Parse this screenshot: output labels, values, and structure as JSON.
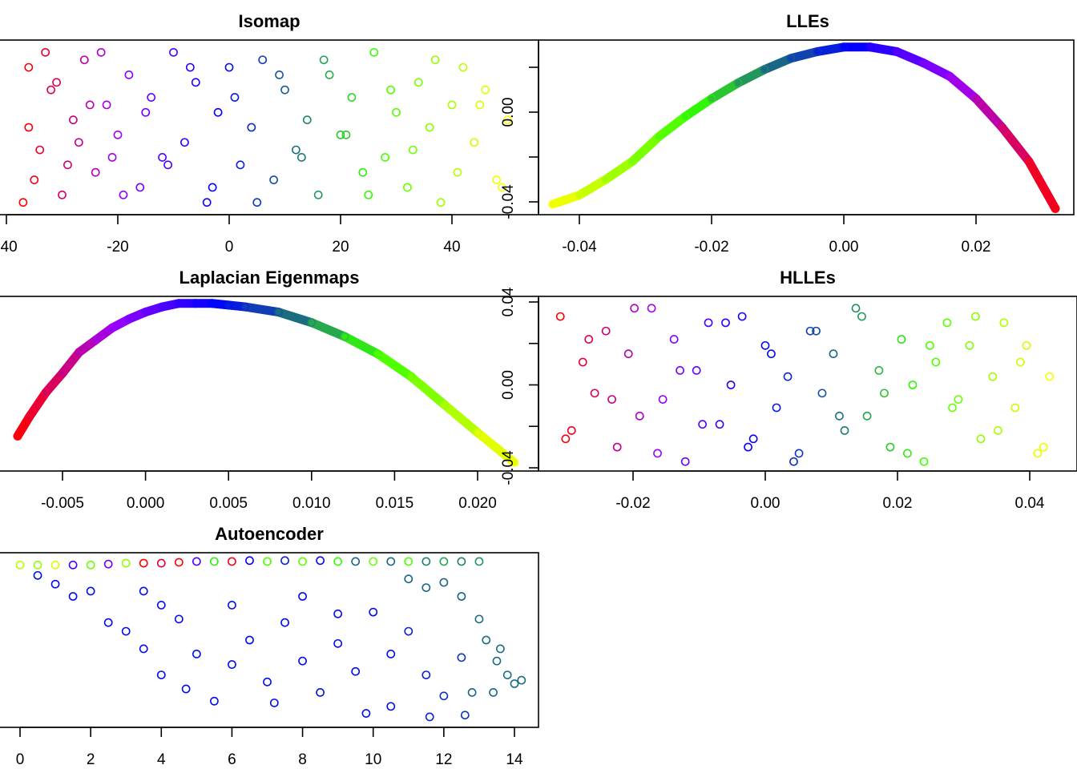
{
  "palette": {
    "stops": [
      0,
      0.2,
      0.4,
      0.55,
      0.72,
      1
    ],
    "colors": [
      "#ff0000",
      "#9900ff",
      "#0000ff",
      "#1a6488",
      "#33ff00",
      "#ffff00"
    ]
  },
  "chart_data": [
    {
      "id": "isomap",
      "type": "scatter",
      "title": "Isomap",
      "marker": "open-circle",
      "color_by": "x",
      "color_range": [
        -37,
        50
      ],
      "x_ticks": [
        -40,
        -20,
        0,
        20,
        40
      ],
      "x_tick_labels": [
        "-40",
        "-20",
        "0",
        "20",
        "40"
      ],
      "points": [
        [
          -36,
          8
        ],
        [
          -34,
          -3
        ],
        [
          -32,
          5
        ],
        [
          -30,
          -9
        ],
        [
          -28,
          1
        ],
        [
          -26,
          9
        ],
        [
          -24,
          -6
        ],
        [
          -22,
          3
        ],
        [
          -20,
          -1
        ],
        [
          -18,
          7
        ],
        [
          -16,
          -8
        ],
        [
          -14,
          4
        ],
        [
          -12,
          -4
        ],
        [
          -10,
          10
        ],
        [
          -8,
          -2
        ],
        [
          -6,
          6
        ],
        [
          -4,
          -10
        ],
        [
          -2,
          2
        ],
        [
          0,
          8
        ],
        [
          2,
          -5
        ],
        [
          4,
          0
        ],
        [
          6,
          9
        ],
        [
          8,
          -7
        ],
        [
          10,
          5
        ],
        [
          12,
          -3
        ],
        [
          14,
          1
        ],
        [
          16,
          -9
        ],
        [
          18,
          7
        ],
        [
          20,
          -1
        ],
        [
          22,
          4
        ],
        [
          24,
          -6
        ],
        [
          26,
          10
        ],
        [
          28,
          -4
        ],
        [
          30,
          2
        ],
        [
          32,
          -8
        ],
        [
          34,
          6
        ],
        [
          36,
          0
        ],
        [
          38,
          -10
        ],
        [
          40,
          3
        ],
        [
          42,
          8
        ],
        [
          44,
          -2
        ],
        [
          46,
          5
        ],
        [
          48,
          -7
        ],
        [
          50,
          1
        ],
        [
          -35,
          -7
        ],
        [
          -31,
          6
        ],
        [
          -27,
          -2
        ],
        [
          -23,
          10
        ],
        [
          -19,
          -9
        ],
        [
          -15,
          2
        ],
        [
          -11,
          -5
        ],
        [
          -7,
          8
        ],
        [
          -3,
          -8
        ],
        [
          1,
          4
        ],
        [
          5,
          -10
        ],
        [
          9,
          7
        ],
        [
          13,
          -4
        ],
        [
          17,
          9
        ],
        [
          21,
          -1
        ],
        [
          25,
          -9
        ],
        [
          29,
          5
        ],
        [
          33,
          -3
        ],
        [
          37,
          9
        ],
        [
          41,
          -6
        ],
        [
          45,
          3
        ],
        [
          49,
          -8
        ],
        [
          -37,
          -10
        ],
        [
          -36,
          0
        ],
        [
          -33,
          10
        ],
        [
          -29,
          -5
        ],
        [
          -25,
          3
        ],
        [
          -21,
          -4
        ]
      ]
    },
    {
      "id": "lle",
      "type": "scatter",
      "title": "LLEs",
      "marker": "open-circle",
      "color_by": "x",
      "color_range": [
        0.032,
        -0.044
      ],
      "x_ticks": [
        -0.04,
        -0.02,
        0.0,
        0.02
      ],
      "x_tick_labels": [
        "-0.04",
        "-0.02",
        "0.00",
        "0.02"
      ],
      "y_ticks": [
        -0.04,
        -0.02,
        0.0,
        0.02
      ],
      "y_tick_labels": [
        "-0.04",
        "",
        "0.00",
        ""
      ],
      "points": [
        [
          -0.044,
          -0.041
        ],
        [
          -0.04,
          -0.037
        ],
        [
          -0.036,
          -0.03
        ],
        [
          -0.032,
          -0.022
        ],
        [
          -0.028,
          -0.011
        ],
        [
          -0.024,
          -0.002
        ],
        [
          -0.02,
          0.006
        ],
        [
          -0.016,
          0.013
        ],
        [
          -0.012,
          0.019
        ],
        [
          -0.008,
          0.024
        ],
        [
          -0.004,
          0.027
        ],
        [
          0.0,
          0.029
        ],
        [
          0.004,
          0.029
        ],
        [
          0.008,
          0.027
        ],
        [
          0.012,
          0.022
        ],
        [
          0.016,
          0.016
        ],
        [
          0.02,
          0.006
        ],
        [
          0.024,
          -0.007
        ],
        [
          0.028,
          -0.022
        ],
        [
          0.032,
          -0.043
        ]
      ]
    },
    {
      "id": "laplacian",
      "type": "scatter",
      "title": "Laplacian Eigenmaps",
      "marker": "open-circle",
      "color_by": "x",
      "color_range": [
        -0.0077,
        0.0222
      ],
      "x_ticks": [
        -0.005,
        0.0,
        0.005,
        0.01,
        0.015,
        0.02
      ],
      "x_tick_labels": [
        "-0.005",
        "0.000",
        "0.005",
        "0.010",
        "0.015",
        "0.020"
      ],
      "points": [
        [
          -0.0077,
          -0.03
        ],
        [
          -0.007,
          -0.019
        ],
        [
          -0.006,
          -0.005
        ],
        [
          -0.005,
          0.006
        ],
        [
          -0.004,
          0.018
        ],
        [
          -0.003,
          0.025
        ],
        [
          -0.002,
          0.032
        ],
        [
          -0.001,
          0.037
        ],
        [
          0.0,
          0.041
        ],
        [
          0.001,
          0.044
        ],
        [
          0.002,
          0.046
        ],
        [
          0.003,
          0.046
        ],
        [
          0.004,
          0.046
        ],
        [
          0.005,
          0.045
        ],
        [
          0.006,
          0.044
        ],
        [
          0.008,
          0.041
        ],
        [
          0.01,
          0.035
        ],
        [
          0.012,
          0.027
        ],
        [
          0.014,
          0.017
        ],
        [
          0.016,
          0.004
        ],
        [
          0.018,
          -0.012
        ],
        [
          0.02,
          -0.028
        ],
        [
          0.0222,
          -0.045
        ]
      ]
    },
    {
      "id": "hlle",
      "type": "scatter",
      "title": "HLLEs",
      "marker": "open-circle",
      "color_by": "x",
      "color_range": [
        -0.031,
        0.044
      ],
      "x_ticks": [
        -0.02,
        0.0,
        0.02,
        0.04
      ],
      "x_tick_labels": [
        "-0.02",
        "0.00",
        "0.02",
        "0.04"
      ],
      "y_ticks": [
        -0.04,
        -0.02,
        0.0,
        0.02,
        0.04
      ],
      "y_tick_labels": [
        "-0.04",
        "",
        "0.00",
        "",
        "0.04"
      ],
      "points": [
        [
          -0.031,
          0.033
        ],
        [
          -0.0293,
          -0.022
        ],
        [
          -0.0276,
          0.011
        ],
        [
          -0.0258,
          -0.004
        ],
        [
          -0.0241,
          0.026
        ],
        [
          -0.0224,
          -0.03
        ],
        [
          -0.0207,
          0.015
        ],
        [
          -0.019,
          -0.015
        ],
        [
          -0.0172,
          0.037
        ],
        [
          -0.0155,
          -0.007
        ],
        [
          -0.0138,
          0.022
        ],
        [
          -0.0121,
          -0.037
        ],
        [
          -0.0104,
          0.007
        ],
        [
          -0.0086,
          0.03
        ],
        [
          -0.0069,
          -0.019
        ],
        [
          -0.0052,
          0.0
        ],
        [
          -0.0035,
          0.033
        ],
        [
          -0.0018,
          -0.026
        ],
        [
          0.0,
          0.019
        ],
        [
          0.0017,
          -0.011
        ],
        [
          0.0034,
          0.004
        ],
        [
          0.0051,
          -0.033
        ],
        [
          0.0068,
          0.026
        ],
        [
          0.0086,
          -0.004
        ],
        [
          0.0103,
          0.015
        ],
        [
          0.012,
          -0.022
        ],
        [
          0.0137,
          0.037
        ],
        [
          0.0154,
          -0.015
        ],
        [
          0.0172,
          0.007
        ],
        [
          0.0189,
          -0.03
        ],
        [
          0.0206,
          0.022
        ],
        [
          0.0223,
          0.0
        ],
        [
          0.024,
          -0.037
        ],
        [
          0.0258,
          0.011
        ],
        [
          0.0275,
          0.03
        ],
        [
          0.0292,
          -0.007
        ],
        [
          0.0309,
          0.019
        ],
        [
          0.0326,
          -0.026
        ],
        [
          0.0344,
          0.004
        ],
        [
          0.0361,
          0.03
        ],
        [
          0.0378,
          -0.011
        ],
        [
          0.0395,
          0.019
        ],
        [
          0.0412,
          -0.033
        ],
        [
          0.043,
          0.004
        ],
        [
          -0.0302,
          -0.026
        ],
        [
          -0.0267,
          0.022
        ],
        [
          -0.0232,
          -0.007
        ],
        [
          -0.0198,
          0.037
        ],
        [
          -0.0163,
          -0.033
        ],
        [
          -0.0129,
          0.007
        ],
        [
          -0.0095,
          -0.019
        ],
        [
          -0.006,
          0.03
        ],
        [
          -0.0026,
          -0.03
        ],
        [
          0.0009,
          0.015
        ],
        [
          0.0043,
          -0.037
        ],
        [
          0.0077,
          0.026
        ],
        [
          0.0112,
          -0.015
        ],
        [
          0.0146,
          0.033
        ],
        [
          0.018,
          -0.004
        ],
        [
          0.0215,
          -0.033
        ],
        [
          0.0249,
          0.019
        ],
        [
          0.0283,
          -0.011
        ],
        [
          0.0318,
          0.033
        ],
        [
          0.0352,
          -0.022
        ],
        [
          0.0386,
          0.011
        ],
        [
          0.0421,
          -0.03
        ]
      ]
    },
    {
      "id": "autoencoder",
      "type": "scatter",
      "title": "Autoencoder",
      "marker": "open-circle",
      "color_by": "point",
      "x_ticks": [
        0,
        2,
        4,
        6,
        8,
        10,
        12,
        14
      ],
      "x_tick_labels": [
        "0",
        "2",
        "4",
        "6",
        "8",
        "10",
        "12",
        "14"
      ],
      "points": [
        [
          0,
          0.93,
          0.9
        ],
        [
          0.5,
          0.93,
          0.85
        ],
        [
          1,
          0.93,
          0.95
        ],
        [
          1.5,
          0.93,
          0.3
        ],
        [
          2,
          0.93,
          0.8
        ],
        [
          2.5,
          0.935,
          0.25
        ],
        [
          3,
          0.94,
          0.85
        ],
        [
          3.5,
          0.94,
          0.0
        ],
        [
          4,
          0.94,
          0.05
        ],
        [
          4.5,
          0.945,
          0.0
        ],
        [
          5,
          0.95,
          0.3
        ],
        [
          5.5,
          0.95,
          0.7
        ],
        [
          6,
          0.95,
          0.02
        ],
        [
          6.5,
          0.955,
          0.4
        ],
        [
          7,
          0.95,
          0.75
        ],
        [
          7.5,
          0.955,
          0.45
        ],
        [
          8,
          0.95,
          0.78
        ],
        [
          8.5,
          0.955,
          0.42
        ],
        [
          9,
          0.95,
          0.72
        ],
        [
          9.5,
          0.95,
          0.55
        ],
        [
          10,
          0.95,
          0.8
        ],
        [
          10.5,
          0.95,
          0.55
        ],
        [
          11,
          0.95,
          0.75
        ],
        [
          11.5,
          0.95,
          0.58
        ],
        [
          12,
          0.95,
          0.62
        ],
        [
          12.5,
          0.95,
          0.58
        ],
        [
          13,
          0.95,
          0.6
        ],
        [
          0.5,
          0.87,
          0.42
        ],
        [
          1,
          0.82,
          0.42
        ],
        [
          1.5,
          0.75,
          0.42
        ],
        [
          2,
          0.78,
          0.42
        ],
        [
          2.5,
          0.6,
          0.42
        ],
        [
          3,
          0.55,
          0.42
        ],
        [
          3.5,
          0.78,
          0.42
        ],
        [
          3.5,
          0.45,
          0.42
        ],
        [
          4,
          0.7,
          0.42
        ],
        [
          4,
          0.3,
          0.42
        ],
        [
          4.5,
          0.62,
          0.42
        ],
        [
          4.7,
          0.22,
          0.42
        ],
        [
          5,
          0.42,
          0.42
        ],
        [
          5.5,
          0.15,
          0.42
        ],
        [
          6,
          0.7,
          0.42
        ],
        [
          6,
          0.36,
          0.42
        ],
        [
          6.5,
          0.5,
          0.42
        ],
        [
          7,
          0.26,
          0.42
        ],
        [
          7.2,
          0.14,
          0.42
        ],
        [
          7.5,
          0.6,
          0.42
        ],
        [
          8,
          0.75,
          0.42
        ],
        [
          8,
          0.38,
          0.42
        ],
        [
          8.5,
          0.2,
          0.42
        ],
        [
          9,
          0.65,
          0.42
        ],
        [
          9,
          0.48,
          0.42
        ],
        [
          9.5,
          0.32,
          0.42
        ],
        [
          9.8,
          0.08,
          0.42
        ],
        [
          10,
          0.66,
          0.42
        ],
        [
          10.5,
          0.12,
          0.42
        ],
        [
          10.5,
          0.42,
          0.42
        ],
        [
          11,
          0.55,
          0.45
        ],
        [
          11.5,
          0.3,
          0.45
        ],
        [
          11.6,
          0.06,
          0.45
        ],
        [
          12,
          0.18,
          0.48
        ],
        [
          12.5,
          0.4,
          0.48
        ],
        [
          12.6,
          0.07,
          0.48
        ],
        [
          11,
          0.85,
          0.55
        ],
        [
          11.5,
          0.8,
          0.55
        ],
        [
          12,
          0.83,
          0.55
        ],
        [
          12.5,
          0.75,
          0.55
        ],
        [
          13,
          0.62,
          0.56
        ],
        [
          13.2,
          0.5,
          0.56
        ],
        [
          13.5,
          0.38,
          0.56
        ],
        [
          13.8,
          0.3,
          0.56
        ],
        [
          14,
          0.25,
          0.56
        ],
        [
          14.2,
          0.27,
          0.56
        ],
        [
          13.4,
          0.2,
          0.55
        ],
        [
          12.8,
          0.2,
          0.55
        ],
        [
          13.6,
          0.45,
          0.56
        ]
      ]
    }
  ]
}
